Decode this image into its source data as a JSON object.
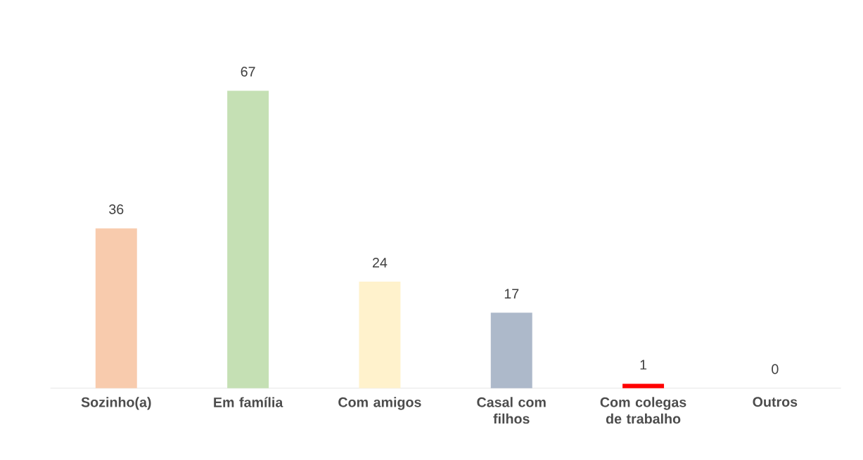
{
  "chart_data": {
    "type": "bar",
    "categories": [
      "Sozinho(a)",
      "Em família",
      "Com amigos",
      "Casal com filhos",
      "Com colegas de trabalho",
      "Outros"
    ],
    "values": [
      36,
      67,
      24,
      17,
      1,
      0
    ],
    "colors": [
      "#f8cbad",
      "#c5e0b4",
      "#fff2cc",
      "#adb9ca",
      "#ff0000",
      "#a5a5a5"
    ],
    "data_labels": true
  }
}
